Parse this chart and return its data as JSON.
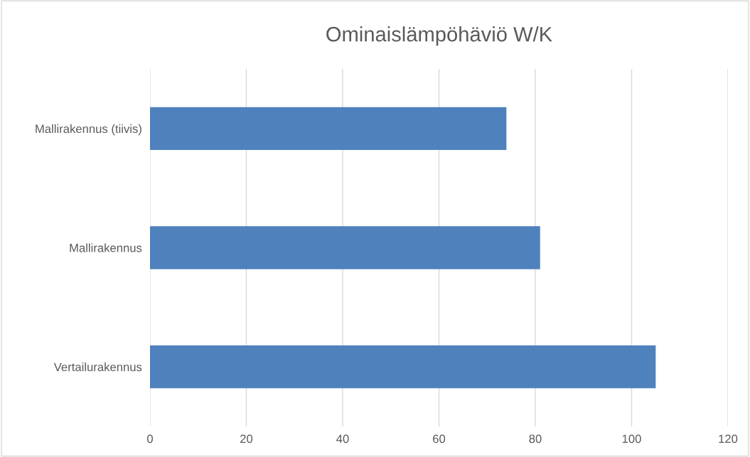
{
  "chart_data": {
    "type": "bar",
    "orientation": "horizontal",
    "title": "Ominaislämpöhäviö W/K",
    "categories": [
      "Mallirakennus (tiivis)",
      "Mallirakennus",
      "Vertailurakennus"
    ],
    "values": [
      74,
      81,
      105
    ],
    "color": "#4f81bd",
    "xlim": [
      0,
      120
    ],
    "xticks": [
      0,
      20,
      40,
      60,
      80,
      100,
      120
    ],
    "grid": "x"
  }
}
